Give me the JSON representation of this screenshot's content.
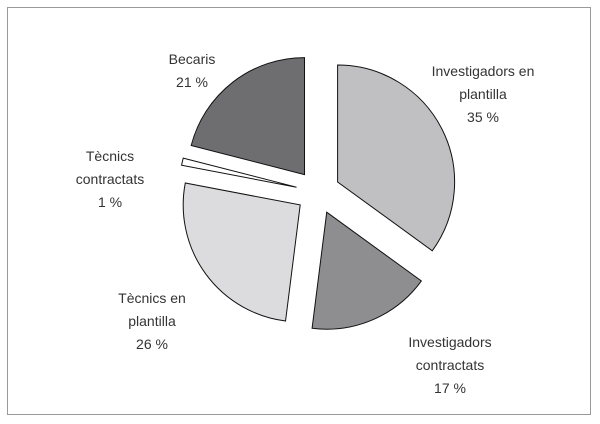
{
  "chart_data": {
    "type": "pie",
    "categories": [
      "Investigadors en plantilla",
      "Investigadors contractats",
      "Tècnics en plantilla",
      "Tècnics contractats",
      "Becaris"
    ],
    "values": [
      35,
      17,
      26,
      1,
      21
    ],
    "value_labels": [
      "35 %",
      "17 %",
      "26 %",
      "1 %",
      "21 %"
    ],
    "colors": [
      "#c0c0c2",
      "#8e8e90",
      "#dcdcde",
      "#ffffff",
      "#6e6e70"
    ]
  }
}
